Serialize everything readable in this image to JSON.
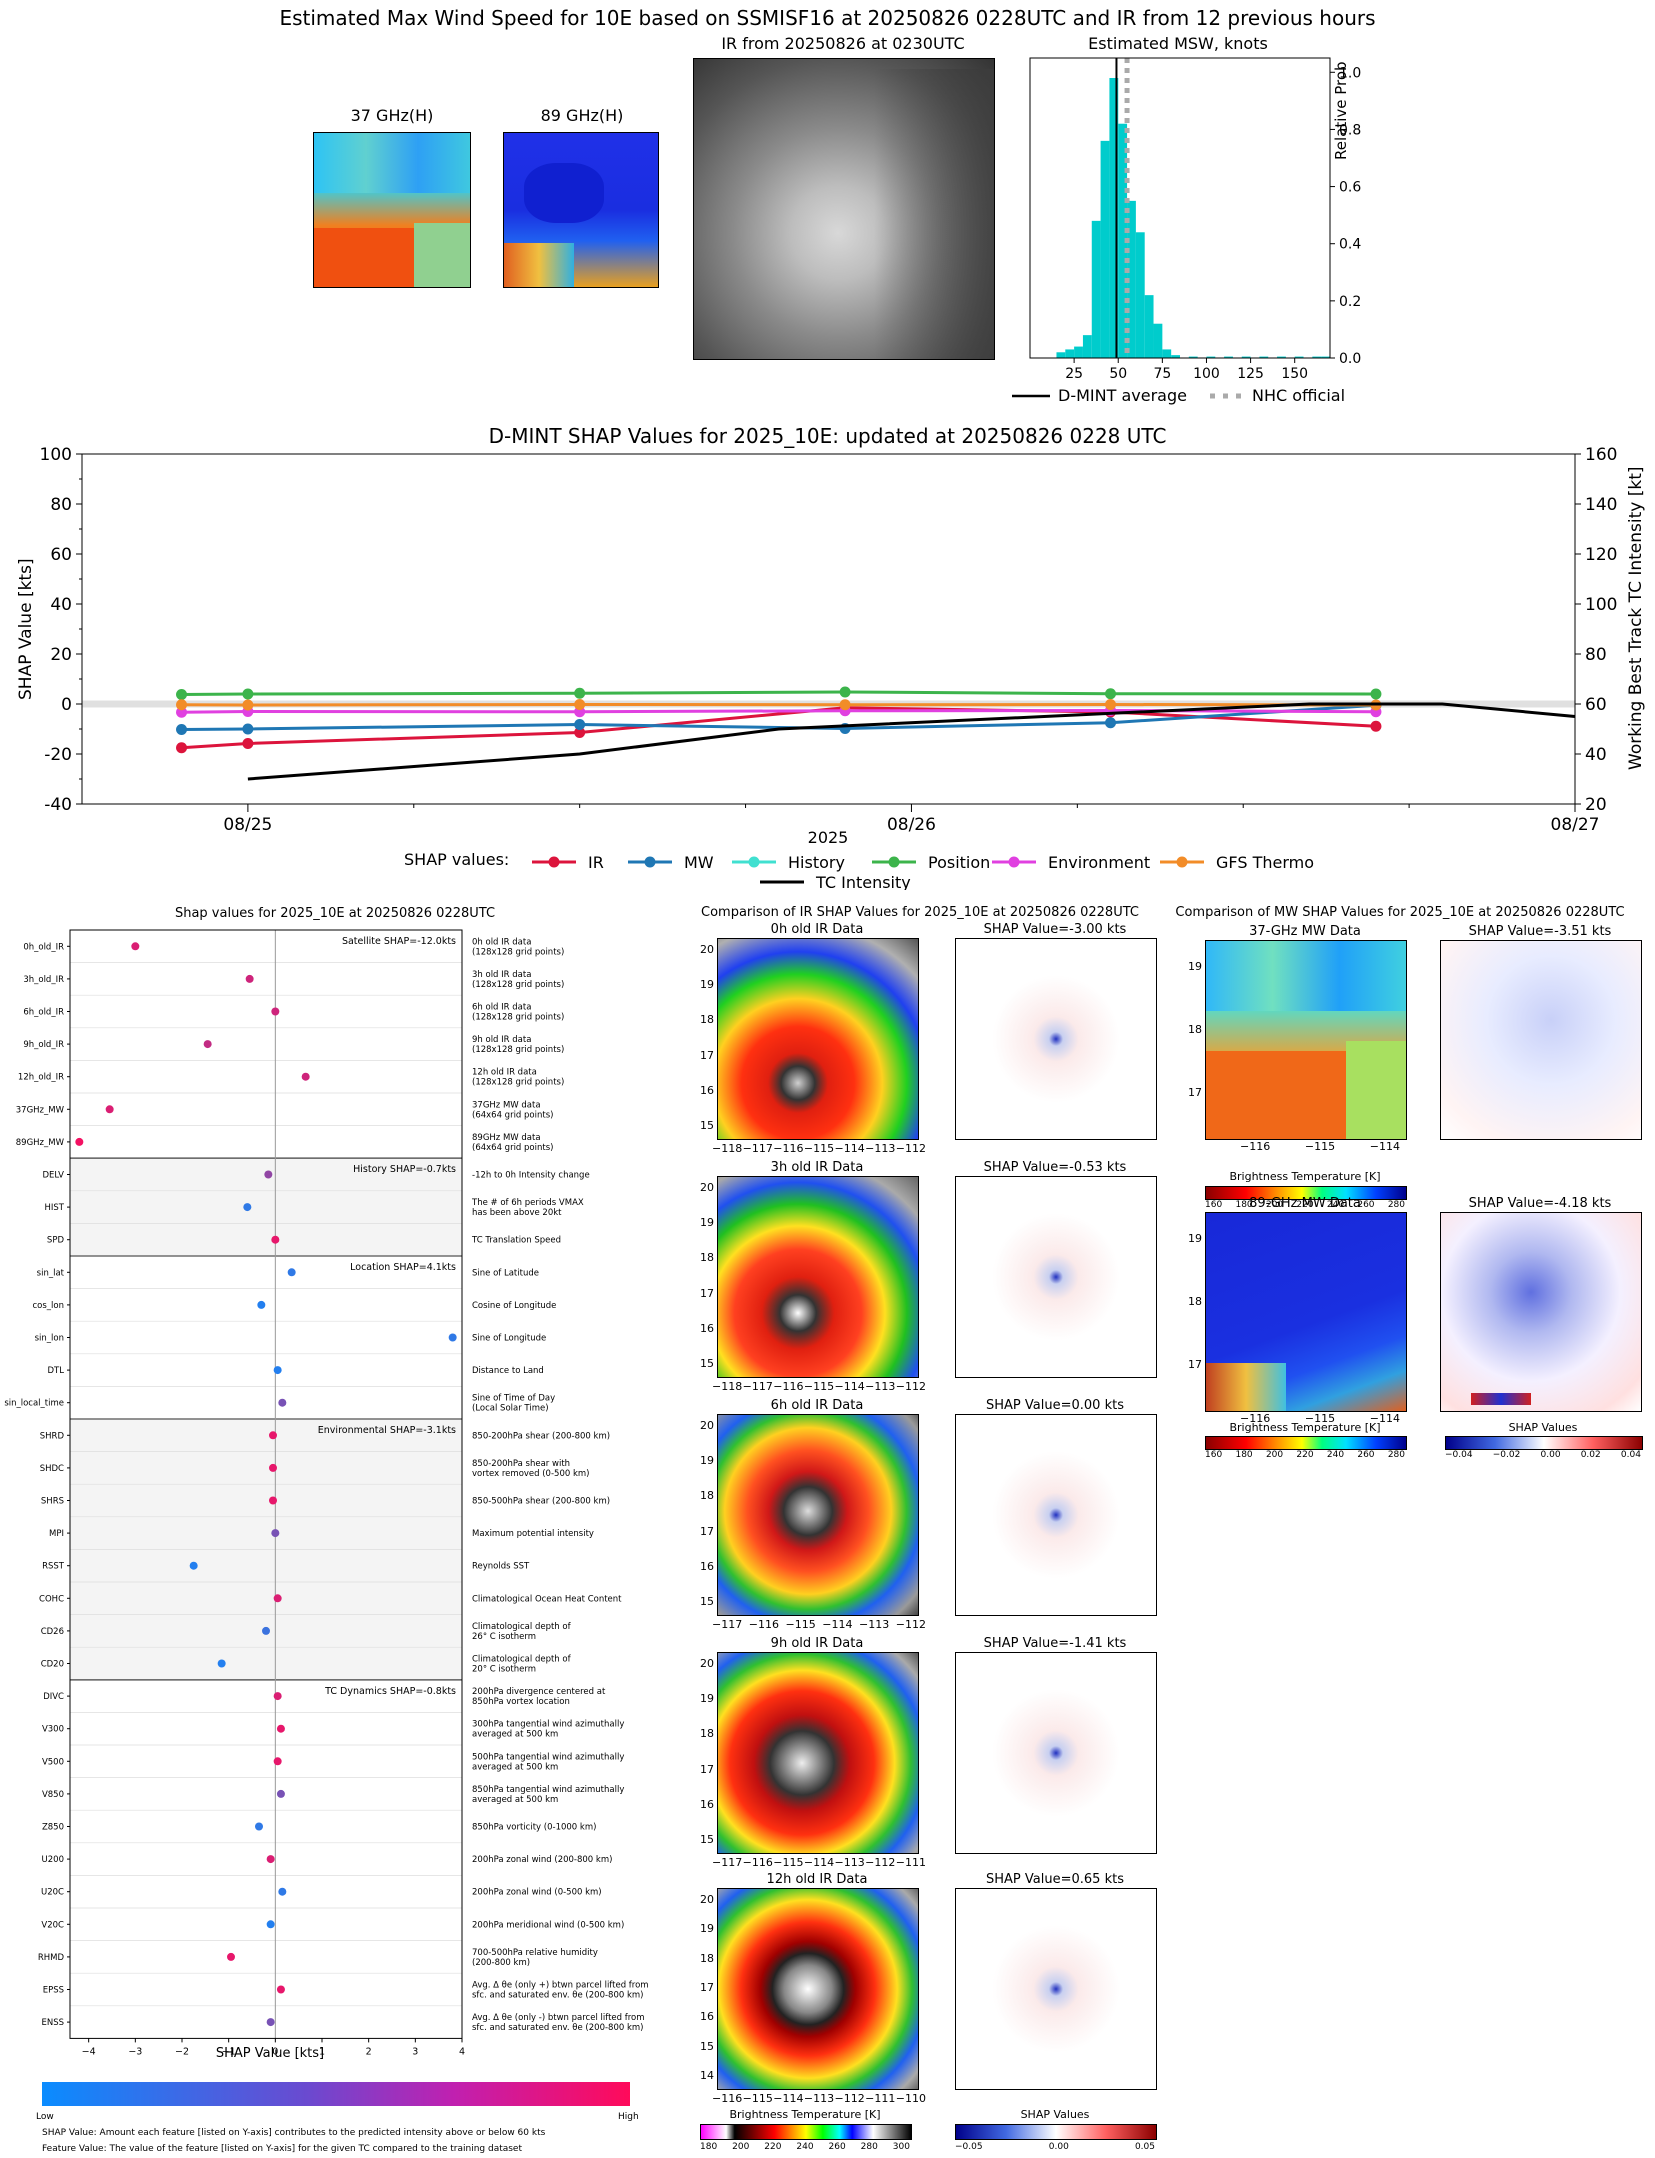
{
  "top": {
    "title": "Estimated Max Wind Speed for 10E based on SSMISF16 at 20250826 0228UTC and IR from 12 previous hours",
    "mw37_title": "37 GHz(H)",
    "mw89_title": "89 GHz(H)",
    "ir_title": "IR from 20250826 at 0230UTC",
    "hist_title": "Estimated MSW, knots",
    "hist_ylabel": "Relative Prob",
    "legend": {
      "dmint": "D-MINT average",
      "nhc": "NHC official"
    }
  },
  "shap_ts": {
    "title": "D-MINT SHAP Values for 2025_10E: updated at 20250826 0228 UTC",
    "ylabel_left": "SHAP Value [kts]",
    "ylabel_right": "Working Best Track TC Intensity [kt]",
    "xlabel": "2025",
    "legend_label": "SHAP values:",
    "series_names": [
      "IR",
      "MW",
      "History",
      "Position",
      "Environment",
      "GFS Thermo",
      "TC Intensity"
    ]
  },
  "features": {
    "title": "Shap values for 2025_10E at 20250826 0228UTC",
    "xlabel": "SHAP Value [kts]",
    "group_labels": [
      "Satellite SHAP=-12.0kts",
      "History SHAP=-0.7kts",
      "Location SHAP=4.1kts",
      "Environmental SHAP=-3.1kts",
      "TC Dynamics SHAP=-0.8kts"
    ],
    "names": [
      "0h_old_IR",
      "3h_old_IR",
      "6h_old_IR",
      "9h_old_IR",
      "12h_old_IR",
      "37GHz_MW",
      "89GHz_MW",
      "DELV",
      "HIST",
      "SPD",
      "sin_lat",
      "cos_lon",
      "sin_lon",
      "DTL",
      "sin_local_time",
      "SHRD",
      "SHDC",
      "SHRS",
      "MPI",
      "RSST",
      "COHC",
      "CD26",
      "CD20",
      "DIVC",
      "V300",
      "V500",
      "V850",
      "Z850",
      "U200",
      "U20C",
      "V20C",
      "RHMD",
      "EPSS",
      "ENSS"
    ],
    "desc1": [
      "0h old IR data",
      "3h old IR data",
      "6h old IR data",
      "9h old IR data",
      "12h old IR data",
      "37GHz MW data",
      "89GHz MW data",
      "-12h to 0h Intensity change",
      "The # of 6h periods VMAX",
      "TC Translation Speed",
      "Sine of Latitude",
      "Cosine of Longitude",
      "Sine of Longitude",
      "Distance to Land",
      "Sine of Time of Day",
      "850-200hPa shear (200-800 km)",
      "850-200hPa shear with",
      "850-500hPa shear (200-800 km)",
      "Maximum potential intensity",
      "Reynolds SST",
      "Climatological Ocean Heat Content",
      "Climatological depth of",
      "Climatological depth of",
      "200hPa divergence centered at",
      "300hPa tangential wind azimuthally",
      "500hPa tangential wind azimuthally",
      "850hPa tangential wind azimuthally",
      "850hPa vorticity (0-1000 km)",
      "200hPa zonal wind (200-800 km)",
      "200hPa zonal wind (0-500 km)",
      "200hPa meridional wind (0-500 km)",
      "700-500hPa relative humidity",
      "Avg. Δ θe (only +) btwn parcel lifted from",
      "Avg. Δ θe (only -) btwn parcel lifted from"
    ],
    "desc2": [
      "(128x128 grid points)",
      "(128x128 grid points)",
      "(128x128 grid points)",
      "(128x128 grid points)",
      "(128x128 grid points)",
      "(64x64 grid points)",
      "(64x64 grid points)",
      "",
      "has been above 20kt",
      "",
      "",
      "",
      "",
      "",
      "(Local Solar Time)",
      "",
      "vortex removed (0-500 km)",
      "",
      "",
      "",
      "",
      "26° C isotherm",
      "20° C isotherm",
      "850hPa vortex location",
      "averaged at 500 km",
      "averaged at 500 km",
      "averaged at 500 km",
      "",
      "",
      "",
      "",
      "(200-800 km)",
      "sfc. and saturated env. θe (200-800 km)",
      "sfc. and saturated env. θe (200-800 km)"
    ],
    "colorbar_low": "Low",
    "colorbar_high": "High",
    "footnote1": "SHAP Value: Amount each feature [listed on Y-axis] contributes to the predicted intensity above or below 60 kts",
    "footnote2": "Feature Value: The value of the feature [listed on Y-axis] for the given TC compared to the training dataset"
  },
  "ir_compare": {
    "title": "Comparison of IR SHAP Values for 2025_10E at 20250826 0228UTC",
    "panels": [
      {
        "img_title": "0h old IR Data",
        "shap_title": "SHAP Value=-3.00 kts",
        "xticks": [
          "−118",
          "−117",
          "−116",
          "−115",
          "−114",
          "−113",
          "−112"
        ]
      },
      {
        "img_title": "3h old IR Data",
        "shap_title": "SHAP Value=-0.53 kts",
        "xticks": [
          "−118",
          "−117",
          "−116",
          "−115",
          "−114",
          "−113",
          "−112"
        ]
      },
      {
        "img_title": "6h old IR Data",
        "shap_title": "SHAP Value=0.00 kts",
        "xticks": [
          "−117",
          "−116",
          "−115",
          "−114",
          "−113",
          "−112"
        ]
      },
      {
        "img_title": "9h old IR Data",
        "shap_title": "SHAP Value=-1.41 kts",
        "xticks": [
          "−117",
          "−116",
          "−115",
          "−114",
          "−113",
          "−112",
          "−111"
        ]
      },
      {
        "img_title": "12h old IR Data",
        "shap_title": "SHAP Value=0.65 kts",
        "xticks": [
          "−116",
          "−115",
          "−114",
          "−113",
          "−112",
          "−111",
          "−110"
        ]
      }
    ],
    "cbar_bt_label": "Brightness Temperature [K]",
    "cbar_bt_ticks": [
      "180",
      "200",
      "220",
      "240",
      "260",
      "280",
      "300"
    ],
    "cbar_shap_label": "SHAP Values",
    "cbar_shap_ticks": [
      "−0.05",
      "0.00",
      "0.05"
    ]
  },
  "mw_compare": {
    "title": "Comparison of MW SHAP Values for 2025_10E at 20250826 0228UTC",
    "p37_title": "37-GHz MW Data",
    "p37_shap": "SHAP Value=-3.51 kts",
    "p89_title": "89-GHz MW Data",
    "p89_shap": "SHAP Value=-4.18 kts",
    "xticks": [
      "−116",
      "−115",
      "−114"
    ],
    "cbar_label": "Brightness Temperature [K]",
    "cbar_ticks": [
      "160",
      "180",
      "200",
      "220",
      "240",
      "260",
      "280"
    ],
    "shap_cbar_label": "SHAP Values",
    "shap_cbar_ticks": [
      "−0.04",
      "−0.02",
      "0.00",
      "0.02",
      "0.04"
    ]
  },
  "chart_data": [
    {
      "type": "bar",
      "title": "Estimated MSW, knots",
      "ylabel": "Relative Prob",
      "xlim": [
        0,
        170
      ],
      "ylim": [
        0,
        1.05
      ],
      "xticks": [
        25,
        50,
        75,
        100,
        125,
        150
      ],
      "yticks": [
        0.0,
        0.2,
        0.4,
        0.6,
        0.8,
        1.0
      ],
      "bin_width": 5,
      "bins": [
        15,
        20,
        25,
        30,
        35,
        40,
        45,
        50,
        55,
        60,
        65,
        70,
        75,
        80,
        90,
        100,
        110,
        120,
        130,
        140,
        150,
        160,
        165
      ],
      "values": [
        0.02,
        0.03,
        0.04,
        0.08,
        0.48,
        0.76,
        0.98,
        0.82,
        0.55,
        0.44,
        0.22,
        0.12,
        0.03,
        0.01,
        0.005,
        0.005,
        0.005,
        0.005,
        0.005,
        0.005,
        0.005,
        0.005,
        0.005
      ],
      "lines": [
        {
          "name": "D-MINT average",
          "x": 49,
          "style": "solid"
        },
        {
          "name": "NHC official",
          "x": 55,
          "style": "dotted"
        }
      ]
    },
    {
      "type": "line",
      "title": "D-MINT SHAP Values for 2025_10E: updated at 20250826 0228 UTC",
      "xlabel": "2025",
      "ylabel": "SHAP Value [kts]",
      "ylabel_right": "Working Best Track TC Intensity [kt]",
      "ylim": [
        -40,
        100
      ],
      "ylim_right": [
        20,
        160
      ],
      "xticks": [
        "08/25",
        "08/26",
        "08/27"
      ],
      "x_hours_from_0825_00": true,
      "series": [
        {
          "name": "IR",
          "color": "#dc143c",
          "x": [
            -3,
            0,
            15,
            27,
            39,
            51
          ],
          "y": [
            -17.5,
            -15.8,
            -11.4,
            -1.5,
            -3.2,
            -8.9
          ]
        },
        {
          "name": "MW",
          "color": "#1f77b4",
          "x": [
            -3,
            0,
            15,
            27,
            39,
            51
          ],
          "y": [
            -10.2,
            -10.0,
            -8.2,
            -9.8,
            -7.5,
            -0.5
          ]
        },
        {
          "name": "Position",
          "color": "#3cb44b",
          "x": [
            -3,
            0,
            15,
            27,
            39,
            51
          ],
          "y": [
            3.8,
            4.0,
            4.3,
            4.8,
            4.1,
            4.0
          ]
        },
        {
          "name": "Environment",
          "color": "#e040e0",
          "x": [
            -3,
            0,
            15,
            27,
            39,
            51
          ],
          "y": [
            -3.3,
            -3.0,
            -3.1,
            -2.7,
            -2.6,
            -3.1
          ]
        },
        {
          "name": "GFS Thermo",
          "color": "#f28c28",
          "x": [
            -3,
            0,
            15,
            27,
            39,
            51
          ],
          "y": [
            -0.3,
            -0.4,
            -0.2,
            -0.3,
            -0.2,
            -0.4
          ]
        },
        {
          "name": "TC Intensity",
          "color": "#000000",
          "axis": "right",
          "x": [
            0,
            15,
            24,
            36,
            48,
            54,
            60
          ],
          "y": [
            30,
            40,
            50,
            55,
            60,
            60,
            55
          ]
        }
      ]
    },
    {
      "type": "scatter",
      "title": "Shap values for 2025_10E at 20250826 0228UTC",
      "xlabel": "SHAP Value [kts]",
      "xlim": [
        -4.4,
        4.0
      ],
      "xticks": [
        -4,
        -3,
        -2,
        -1,
        0,
        1,
        2,
        3,
        4
      ],
      "values": [
        -3.0,
        -0.55,
        0.0,
        -1.45,
        0.65,
        -3.55,
        -4.2,
        -0.15,
        -0.6,
        0.0,
        0.35,
        -0.3,
        3.8,
        0.05,
        0.15,
        -0.05,
        -0.05,
        -0.05,
        0.0,
        -1.75,
        0.05,
        -0.2,
        -1.15,
        0.05,
        0.12,
        0.05,
        0.12,
        -0.35,
        -0.1,
        0.15,
        -0.1,
        -0.95,
        0.12,
        -0.1
      ],
      "feature_value": [
        0.85,
        0.8,
        0.8,
        0.75,
        0.8,
        0.85,
        0.95,
        0.55,
        0.15,
        0.9,
        0.15,
        0.1,
        0.15,
        0.1,
        0.45,
        0.9,
        0.9,
        0.9,
        0.45,
        0.1,
        0.85,
        0.2,
        0.1,
        0.85,
        0.9,
        0.9,
        0.45,
        0.15,
        0.85,
        0.15,
        0.1,
        0.9,
        0.9,
        0.45
      ]
    }
  ]
}
